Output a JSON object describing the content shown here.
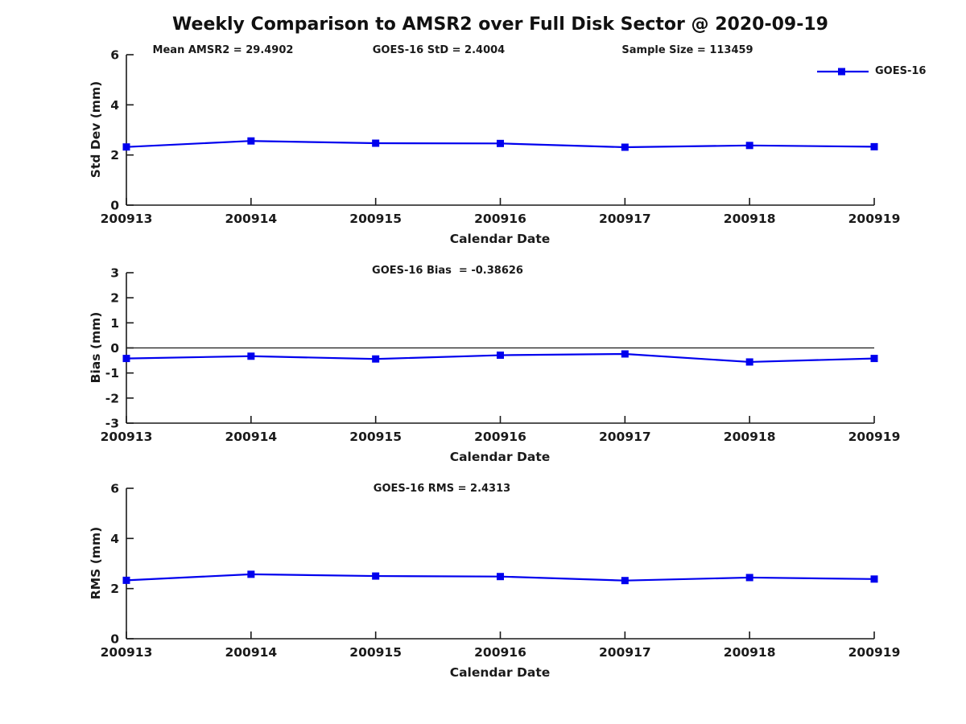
{
  "title": "Weekly Comparison to AMSR2 over Full Disk Sector @ 2020-09-19",
  "accent_color": "#0000EE",
  "axis_color": "#1a1a1a",
  "legend": {
    "label": "GOES-16",
    "position": "top-right"
  },
  "chart_data": [
    {
      "type": "line",
      "series_name": "GOES-16",
      "categories": [
        "200913",
        "200914",
        "200915",
        "200916",
        "200917",
        "200918",
        "200919"
      ],
      "values": [
        2.32,
        2.56,
        2.47,
        2.46,
        2.31,
        2.38,
        2.33
      ],
      "ylabel": "Std Dev (mm)",
      "xlabel": "Calendar Date",
      "ylim": [
        0,
        6
      ],
      "yticks": [
        0,
        2,
        4,
        6
      ],
      "zero_line": false,
      "grid": false,
      "annotations": [
        "Mean AMSR2 = 29.4902",
        "GOES-16 StD = 2.4004",
        "Sample Size = 113459"
      ]
    },
    {
      "type": "line",
      "series_name": "GOES-16",
      "categories": [
        "200913",
        "200914",
        "200915",
        "200916",
        "200917",
        "200918",
        "200919"
      ],
      "values": [
        -0.42,
        -0.33,
        -0.44,
        -0.29,
        -0.24,
        -0.56,
        -0.42
      ],
      "ylabel": "Bias (mm)",
      "xlabel": "Calendar Date",
      "ylim": [
        -3,
        3
      ],
      "yticks": [
        -3,
        -2,
        -1,
        0,
        1,
        2,
        3
      ],
      "zero_line": true,
      "grid": false,
      "annotations": [
        "GOES-16 Bias  = -0.38626"
      ]
    },
    {
      "type": "line",
      "series_name": "GOES-16",
      "categories": [
        "200913",
        "200914",
        "200915",
        "200916",
        "200917",
        "200918",
        "200919"
      ],
      "values": [
        2.33,
        2.57,
        2.5,
        2.48,
        2.32,
        2.44,
        2.38
      ],
      "ylabel": "RMS (mm)",
      "xlabel": "Calendar Date",
      "ylim": [
        0,
        6
      ],
      "yticks": [
        0,
        2,
        4,
        6
      ],
      "zero_line": false,
      "grid": false,
      "annotations": [
        "GOES-16 RMS = 2.4313"
      ]
    }
  ]
}
